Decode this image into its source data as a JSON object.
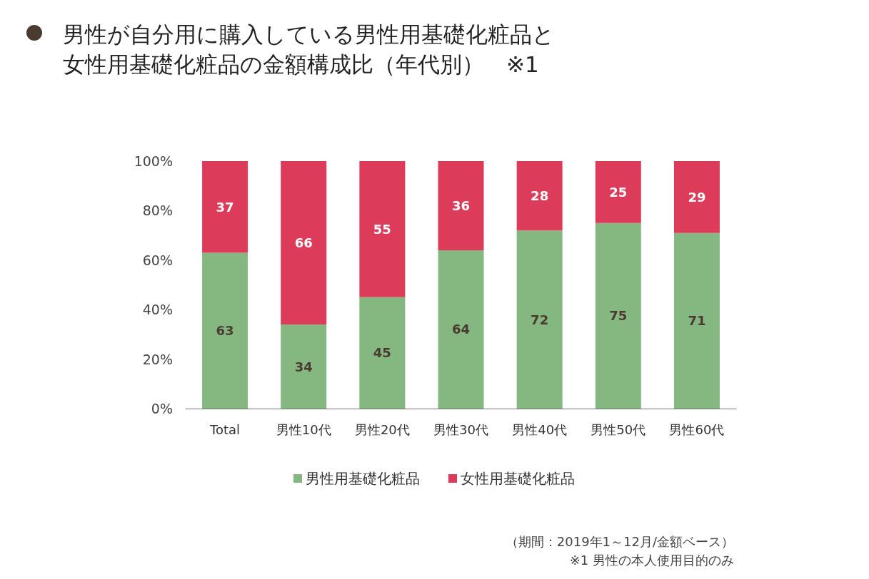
{
  "chart_data": {
    "type": "bar",
    "stacked": true,
    "title": "男性が自分用に購入している男性用基礎化粧品と女性用基礎化粧品の金額構成比（年代別）　※1",
    "categories": [
      "Total",
      "男性10代",
      "男性20代",
      "男性30代",
      "男性40代",
      "男性50代",
      "男性60代"
    ],
    "series": [
      {
        "name": "男性用基礎化粧品",
        "color": "#84b880",
        "values": [
          63,
          34,
          45,
          64,
          72,
          75,
          71
        ]
      },
      {
        "name": "女性用基礎化粧品",
        "color": "#dc3c5a",
        "values": [
          37,
          66,
          55,
          36,
          28,
          25,
          29
        ]
      }
    ],
    "ylim": [
      0,
      100
    ],
    "yticks": [
      {
        "value": 0,
        "label": "0%"
      },
      {
        "value": 20,
        "label": "20%"
      },
      {
        "value": 40,
        "label": "40%"
      },
      {
        "value": 60,
        "label": "60%"
      },
      {
        "value": 80,
        "label": "80%"
      },
      {
        "value": 100,
        "label": "100%"
      }
    ],
    "data_labels": true,
    "grid": false,
    "legend": "bottom",
    "annotations": [
      "（期間：2019年1～12月/金額ベース）",
      "※1 男性の本人使用目的のみ"
    ]
  }
}
